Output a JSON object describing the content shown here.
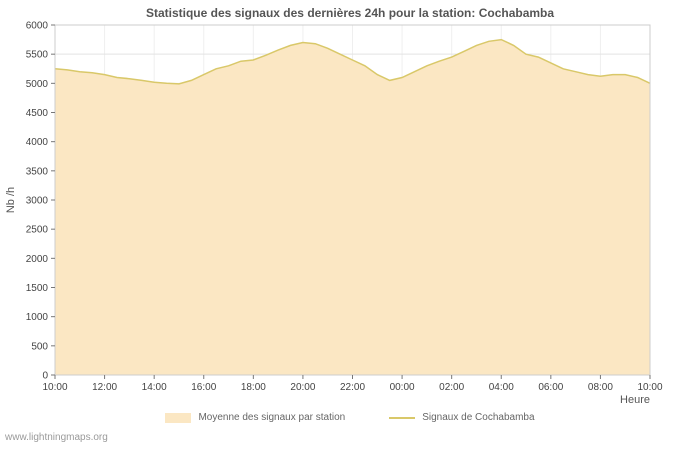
{
  "footer": {
    "watermark": "www.lightningmaps.org"
  },
  "chart_data": {
    "type": "area",
    "title": "Statistique des signaux des dernières 24h pour la station: Cochabamba",
    "xlabel": "Heure",
    "ylabel": "Nb /h",
    "ylim": [
      0,
      6000
    ],
    "y_tick_step": 500,
    "grid": true,
    "legend_position": "bottom",
    "x_tick_labels": [
      "10:00",
      "12:00",
      "14:00",
      "16:00",
      "18:00",
      "20:00",
      "22:00",
      "00:00",
      "02:00",
      "04:00",
      "06:00",
      "08:00",
      "10:00"
    ],
    "x_step_hours": 0.5,
    "series": [
      {
        "name": "Moyenne des signaux par station",
        "type": "area",
        "color": "#fbe7c3",
        "values": [
          5250,
          5230,
          5200,
          5180,
          5150,
          5100,
          5080,
          5050,
          5020,
          5000,
          4990,
          5050,
          5150,
          5250,
          5300,
          5380,
          5400,
          5480,
          5570,
          5650,
          5700,
          5680,
          5600,
          5500,
          5400,
          5300,
          5150,
          5050,
          5100,
          5200,
          5300,
          5380,
          5450,
          5550,
          5650,
          5720,
          5750,
          5650,
          5500,
          5450,
          5350,
          5250,
          5200,
          5150,
          5120,
          5150,
          5150,
          5100,
          5000
        ]
      },
      {
        "name": "Signaux de Cochabamba",
        "type": "line",
        "color": "#d9c869",
        "values": [
          5250,
          5230,
          5200,
          5180,
          5150,
          5100,
          5080,
          5050,
          5020,
          5000,
          4990,
          5050,
          5150,
          5250,
          5300,
          5380,
          5400,
          5480,
          5570,
          5650,
          5700,
          5680,
          5600,
          5500,
          5400,
          5300,
          5150,
          5050,
          5100,
          5200,
          5300,
          5380,
          5450,
          5550,
          5650,
          5720,
          5750,
          5650,
          5500,
          5450,
          5350,
          5250,
          5200,
          5150,
          5120,
          5150,
          5150,
          5100,
          5000
        ]
      }
    ]
  }
}
